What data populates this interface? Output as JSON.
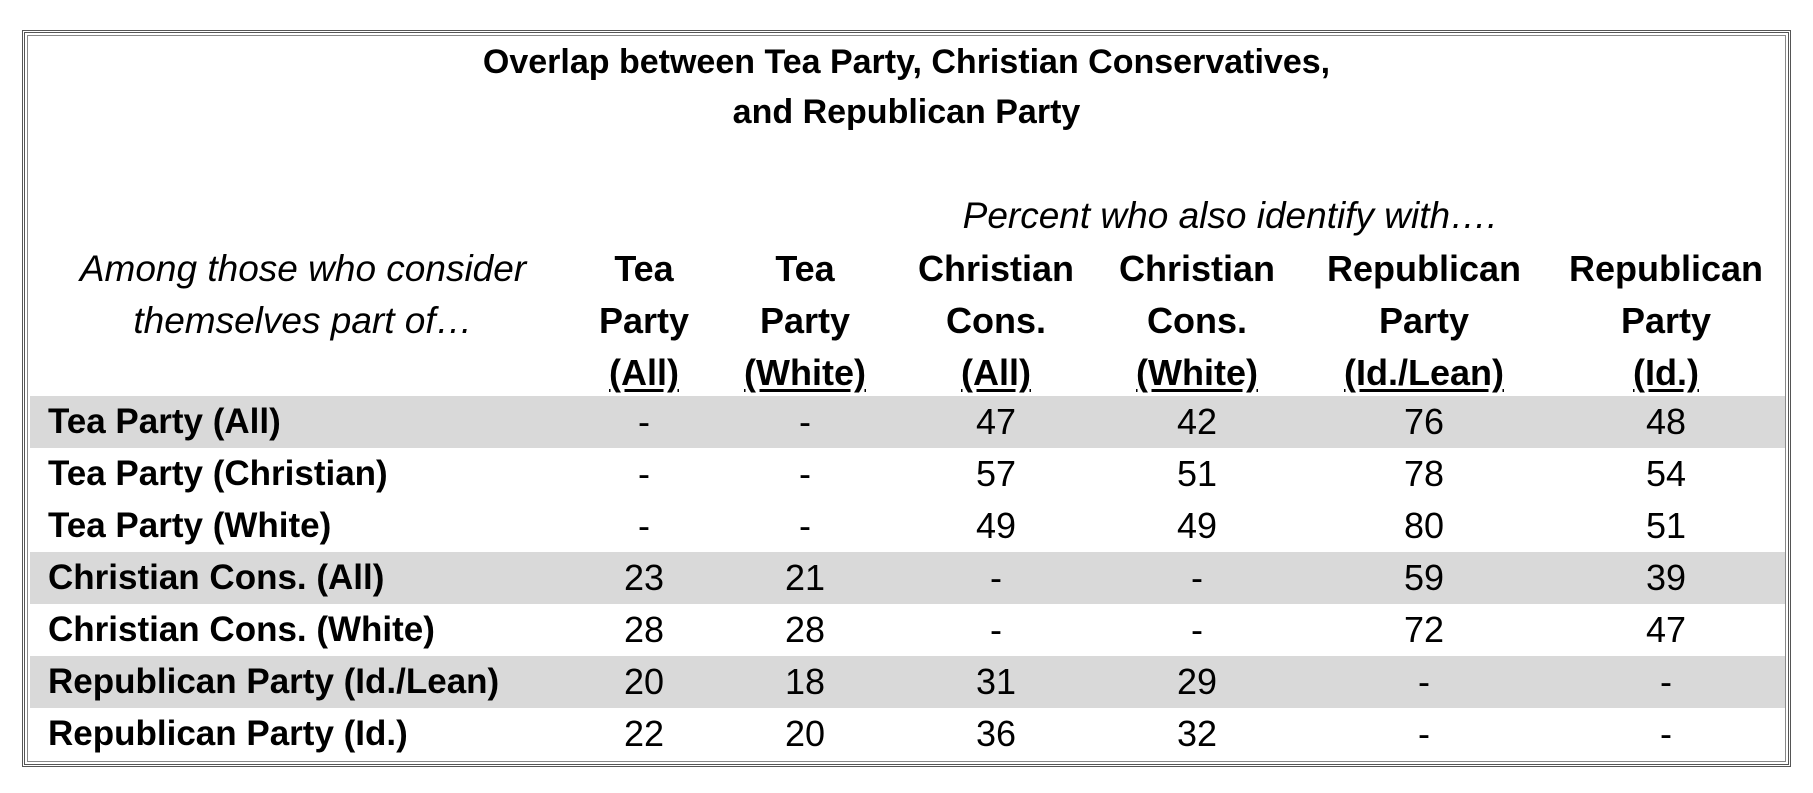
{
  "title_line1": "Overlap between Tea Party, Christian Conservatives,",
  "title_line2": "and Republican Party",
  "subtitle": "Percent who also identify with….",
  "row_header_line1": "Among those who consider",
  "row_header_line2": "themselves part of…",
  "columns": [
    {
      "line1": "Tea",
      "line2": "Party",
      "line3": "(All)"
    },
    {
      "line1": "Tea",
      "line2": "Party",
      "line3": "(White)"
    },
    {
      "line1": "Christian",
      "line2": "Cons.",
      "line3": "(All)"
    },
    {
      "line1": "Christian",
      "line2": "Cons.",
      "line3": "(White)"
    },
    {
      "line1": "Republican",
      "line2": "Party",
      "line3": "(Id./Lean)"
    },
    {
      "line1": "Republican",
      "line2": "Party",
      "line3": "(Id.)"
    }
  ],
  "rows": [
    {
      "label": "Tea Party (All)",
      "shaded": true,
      "values": [
        "-",
        "-",
        "47",
        "42",
        "76",
        "48"
      ]
    },
    {
      "label": "Tea Party (Christian)",
      "shaded": false,
      "values": [
        "-",
        "-",
        "57",
        "51",
        "78",
        "54"
      ]
    },
    {
      "label": "Tea Party (White)",
      "shaded": false,
      "values": [
        "-",
        "-",
        "49",
        "49",
        "80",
        "51"
      ]
    },
    {
      "label": "Christian Cons. (All)",
      "shaded": true,
      "values": [
        "23",
        "21",
        "-",
        "-",
        "59",
        "39"
      ]
    },
    {
      "label": "Christian Cons. (White)",
      "shaded": false,
      "values": [
        "28",
        "28",
        "-",
        "-",
        "72",
        "47"
      ]
    },
    {
      "label": "Republican Party (Id./Lean)",
      "shaded": true,
      "values": [
        "20",
        "18",
        "31",
        "29",
        "-",
        "-"
      ]
    },
    {
      "label": "Republican Party (Id.)",
      "shaded": false,
      "values": [
        "22",
        "20",
        "36",
        "32",
        "-",
        "-"
      ]
    }
  ],
  "colors": {
    "shade": "#d9d9d9",
    "border": "#555555"
  }
}
